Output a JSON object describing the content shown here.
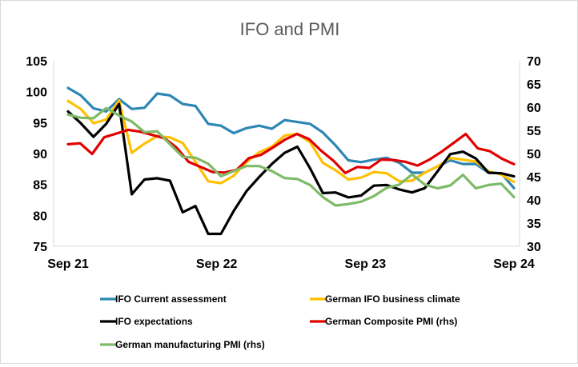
{
  "chart_data": {
    "type": "line",
    "title": "IFO and PMI",
    "x_ticks": [
      "Sep 21",
      "Sep 22",
      "Sep 23",
      "Sep 24"
    ],
    "x_start": "Sep 21",
    "x_end": "Sep 24",
    "y_left": {
      "min": 75,
      "max": 105,
      "ticks": [
        "75",
        "80",
        "85",
        "90",
        "95",
        "100",
        "105"
      ]
    },
    "y_right": {
      "min": 30,
      "max": 70,
      "ticks": [
        "30",
        "35",
        "40",
        "45",
        "50",
        "55",
        "60",
        "65",
        "70"
      ]
    },
    "grid": false,
    "legend_position": "bottom",
    "series": [
      {
        "name": "IFO Current assessment",
        "color": "#2e86b4",
        "axis": "left",
        "values": [
          100.6,
          99.4,
          97.3,
          96.8,
          98.8,
          97.2,
          97.4,
          99.7,
          99.4,
          98.0,
          97.7,
          94.8,
          94.5,
          93.3,
          94.1,
          94.5,
          94.0,
          95.4,
          95.1,
          94.8,
          93.4,
          91.3,
          88.9,
          88.6,
          89.0,
          89.3,
          88.5,
          86.9,
          86.9,
          87.9,
          88.9,
          88.3,
          88.3,
          86.9,
          86.8,
          84.4
        ]
      },
      {
        "name": "German IFO business climate",
        "color": "#ffc000",
        "axis": "left",
        "values": [
          98.5,
          97.2,
          94.9,
          95.5,
          98.6,
          90.1,
          91.6,
          92.8,
          92.6,
          91.7,
          88.7,
          85.5,
          85.2,
          86.4,
          88.6,
          90.2,
          91.1,
          92.9,
          93.2,
          91.8,
          88.5,
          87.3,
          85.8,
          86.1,
          87.0,
          86.8,
          85.5,
          85.6,
          86.9,
          87.9,
          89.3,
          89.0,
          88.7,
          87.1,
          86.6,
          85.4
        ]
      },
      {
        "name": "IFO expectations",
        "color": "#000000",
        "axis": "left",
        "values": [
          96.8,
          94.9,
          92.7,
          94.8,
          98.0,
          83.4,
          85.8,
          86.0,
          85.6,
          80.5,
          81.5,
          77.0,
          77.0,
          80.7,
          83.9,
          86.2,
          88.3,
          90.1,
          91.1,
          87.6,
          83.6,
          83.7,
          82.9,
          83.2,
          84.8,
          84.9,
          84.2,
          83.7,
          84.4,
          87.1,
          89.9,
          90.3,
          89.2,
          86.9,
          86.8,
          86.3
        ]
      },
      {
        "name": "German Composite PMI (rhs)",
        "color": "#e00000",
        "axis": "right",
        "values": [
          52.0,
          52.2,
          49.9,
          53.5,
          54.3,
          55.1,
          54.7,
          54.0,
          53.3,
          51.3,
          48.2,
          47.1,
          46.0,
          45.9,
          46.5,
          49.0,
          49.7,
          51.3,
          53.0,
          54.2,
          53.1,
          50.6,
          48.5,
          45.8,
          47.1,
          46.9,
          48.7,
          48.6,
          48.2,
          47.4,
          48.7,
          50.4,
          52.3,
          54.2,
          51.1,
          50.5,
          48.9,
          47.7
        ]
      },
      {
        "name": "German manufacturing PMI (rhs)",
        "color": "#7fba68",
        "axis": "right",
        "values": [
          58.4,
          57.7,
          57.6,
          59.8,
          58.2,
          56.9,
          54.6,
          54.8,
          52.0,
          49.3,
          49.1,
          47.8,
          45.1,
          46.2,
          47.3,
          47.3,
          46.2,
          44.7,
          44.5,
          43.2,
          40.6,
          38.8,
          39.1,
          39.6,
          40.8,
          42.6,
          43.3,
          45.5,
          43.3,
          42.5,
          43.1,
          45.4,
          42.5,
          43.2,
          43.5,
          40.6
        ]
      }
    ]
  }
}
